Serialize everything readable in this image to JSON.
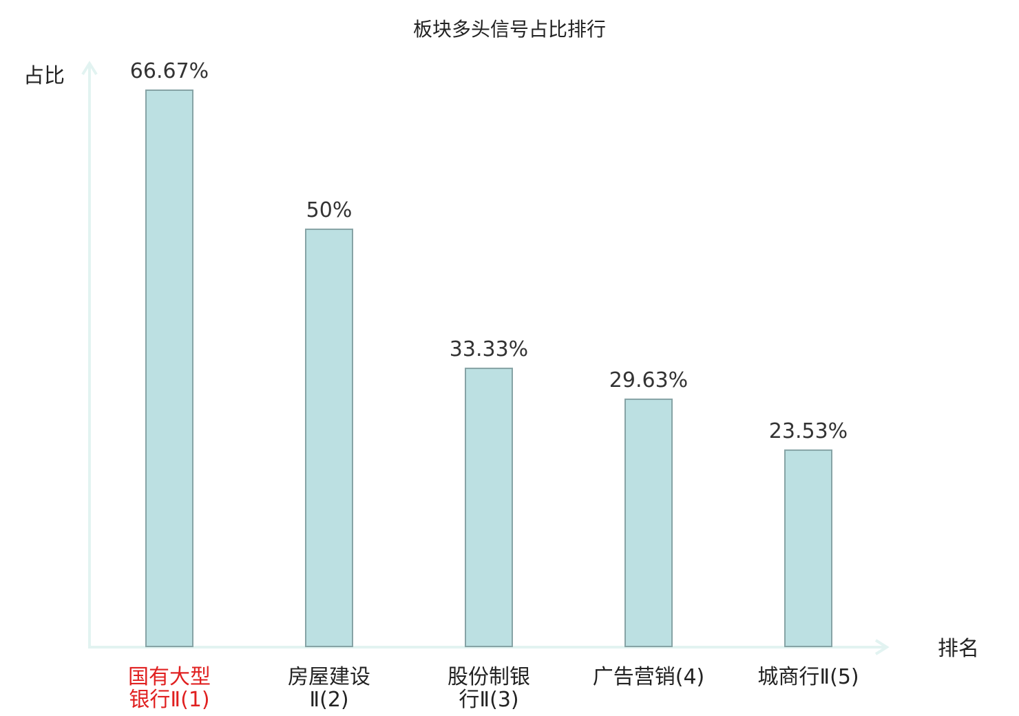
{
  "chart_data": {
    "type": "bar",
    "title": "板块多头信号占比排行",
    "ylabel": "占比",
    "xlabel": "排名",
    "categories": [
      [
        "国有大型",
        "银行Ⅱ(1)"
      ],
      [
        "房屋建设",
        "Ⅱ(2)"
      ],
      [
        "股份制银",
        "行Ⅱ(3)"
      ],
      [
        "广告营销(4)"
      ],
      [
        "城商行Ⅱ(5)"
      ]
    ],
    "values": [
      66.67,
      50,
      33.33,
      29.63,
      23.53
    ],
    "value_labels": [
      "66.67%",
      "50%",
      "33.33%",
      "29.63%",
      "23.53%"
    ],
    "highlight_index": 0,
    "ylim": [
      0,
      66.67
    ],
    "grid": false,
    "colors": {
      "bar_fill": "#bce0e2",
      "bar_stroke": "#86a3a5",
      "axis": "#e2f3f1",
      "highlight_label": "#e02020",
      "label": "#222222"
    }
  }
}
